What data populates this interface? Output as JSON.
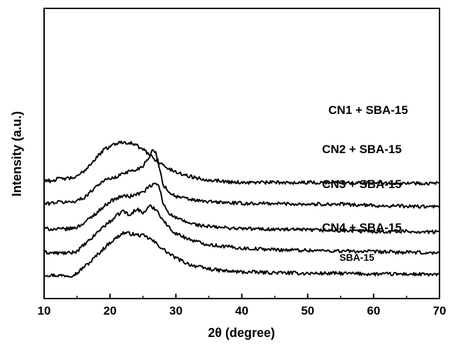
{
  "chart_data": {
    "type": "line",
    "title": "",
    "xlabel": "2θ (degree)",
    "ylabel": "Intensity (a.u.)",
    "xlim": [
      10,
      70
    ],
    "xticks": [
      10,
      20,
      30,
      40,
      50,
      60,
      70
    ],
    "y_tick_labels": false,
    "grid": false,
    "legend": "none (series labelled directly above each trace)",
    "series": [
      {
        "name": "CN1 + SBA-15",
        "points": [
          [
            10,
            34
          ],
          [
            12,
            33
          ],
          [
            14,
            33
          ],
          [
            15,
            36
          ],
          [
            16,
            45
          ],
          [
            17,
            52
          ],
          [
            18,
            62
          ],
          [
            19,
            71
          ],
          [
            20,
            80
          ],
          [
            21,
            87
          ],
          [
            22,
            94
          ],
          [
            23,
            93
          ],
          [
            24,
            91
          ],
          [
            25,
            90
          ],
          [
            26,
            86
          ],
          [
            27,
            79
          ],
          [
            28,
            71
          ],
          [
            29,
            64
          ],
          [
            30,
            58
          ],
          [
            32,
            49
          ],
          [
            34,
            44
          ],
          [
            36,
            41
          ],
          [
            38,
            39
          ],
          [
            40,
            38
          ],
          [
            45,
            37
          ],
          [
            50,
            36
          ],
          [
            55,
            36
          ],
          [
            60,
            35
          ],
          [
            65,
            35
          ],
          [
            70,
            34
          ]
        ]
      },
      {
        "name": "CN2 + SBA-15",
        "points": [
          [
            10,
            66
          ],
          [
            12,
            65
          ],
          [
            14,
            65
          ],
          [
            15,
            68
          ],
          [
            16,
            76
          ],
          [
            17,
            84
          ],
          [
            18,
            94
          ],
          [
            19,
            103
          ],
          [
            20,
            110
          ],
          [
            21,
            118
          ],
          [
            22,
            126
          ],
          [
            23,
            118
          ],
          [
            24,
            129
          ],
          [
            25,
            122
          ],
          [
            26,
            132
          ],
          [
            27,
            128
          ],
          [
            28,
            113
          ],
          [
            29,
            101
          ],
          [
            30,
            93
          ],
          [
            32,
            85
          ],
          [
            34,
            79
          ],
          [
            36,
            76
          ],
          [
            38,
            74
          ],
          [
            40,
            72
          ],
          [
            45,
            70
          ],
          [
            50,
            69
          ],
          [
            55,
            68
          ],
          [
            60,
            67
          ],
          [
            65,
            66
          ],
          [
            70,
            65
          ]
        ]
      },
      {
        "name": "CN3 + SBA-15",
        "points": [
          [
            10,
            100
          ],
          [
            12,
            99
          ],
          [
            14,
            100
          ],
          [
            15,
            102
          ],
          [
            16,
            108
          ],
          [
            17,
            115
          ],
          [
            18,
            123
          ],
          [
            19,
            131
          ],
          [
            20,
            139
          ],
          [
            21,
            143
          ],
          [
            22,
            147
          ],
          [
            23,
            146
          ],
          [
            24,
            149
          ],
          [
            25,
            152
          ],
          [
            26,
            160
          ],
          [
            27,
            165
          ],
          [
            27.5,
            159
          ],
          [
            28,
            137
          ],
          [
            29,
            122
          ],
          [
            30,
            115
          ],
          [
            32,
            108
          ],
          [
            34,
            104
          ],
          [
            36,
            102
          ],
          [
            38,
            101
          ],
          [
            40,
            100
          ],
          [
            45,
            99
          ],
          [
            50,
            98
          ],
          [
            55,
            97
          ],
          [
            60,
            96
          ],
          [
            65,
            96
          ],
          [
            70,
            95
          ]
        ]
      },
      {
        "name": "CN4 + SBA-15",
        "points": [
          [
            10,
            135
          ],
          [
            12,
            138
          ],
          [
            14,
            138
          ],
          [
            15,
            140
          ],
          [
            16,
            144
          ],
          [
            17,
            152
          ],
          [
            18,
            162
          ],
          [
            19,
            168
          ],
          [
            20,
            172
          ],
          [
            21,
            173
          ],
          [
            22,
            180
          ],
          [
            23,
            182
          ],
          [
            24,
            184
          ],
          [
            25,
            190
          ],
          [
            26,
            204
          ],
          [
            26.5,
            212
          ],
          [
            27,
            208
          ],
          [
            27.5,
            188
          ],
          [
            28,
            164
          ],
          [
            29,
            152
          ],
          [
            30,
            146
          ],
          [
            32,
            142
          ],
          [
            34,
            139
          ],
          [
            36,
            138
          ],
          [
            38,
            137
          ],
          [
            40,
            136
          ],
          [
            45,
            136
          ],
          [
            50,
            135
          ],
          [
            55,
            135
          ],
          [
            60,
            133
          ],
          [
            65,
            132
          ],
          [
            70,
            131
          ]
        ]
      },
      {
        "name": "SBA-15",
        "points": [
          [
            10,
            170
          ],
          [
            11,
            168
          ],
          [
            12,
            171
          ],
          [
            14,
            172
          ],
          [
            15,
            174
          ],
          [
            16,
            182
          ],
          [
            17,
            192
          ],
          [
            18,
            202
          ],
          [
            19,
            212
          ],
          [
            20,
            218
          ],
          [
            21,
            222
          ],
          [
            22,
            224
          ],
          [
            23,
            223
          ],
          [
            24,
            219
          ],
          [
            25,
            213
          ],
          [
            26,
            206
          ],
          [
            27,
            198
          ],
          [
            28,
            191
          ],
          [
            29,
            185
          ],
          [
            30,
            181
          ],
          [
            32,
            175
          ],
          [
            34,
            171
          ],
          [
            36,
            169
          ],
          [
            38,
            167
          ],
          [
            40,
            166
          ],
          [
            45,
            166
          ],
          [
            50,
            166
          ],
          [
            55,
            166
          ],
          [
            60,
            166
          ],
          [
            65,
            165
          ],
          [
            70,
            165
          ]
        ]
      }
    ]
  }
}
